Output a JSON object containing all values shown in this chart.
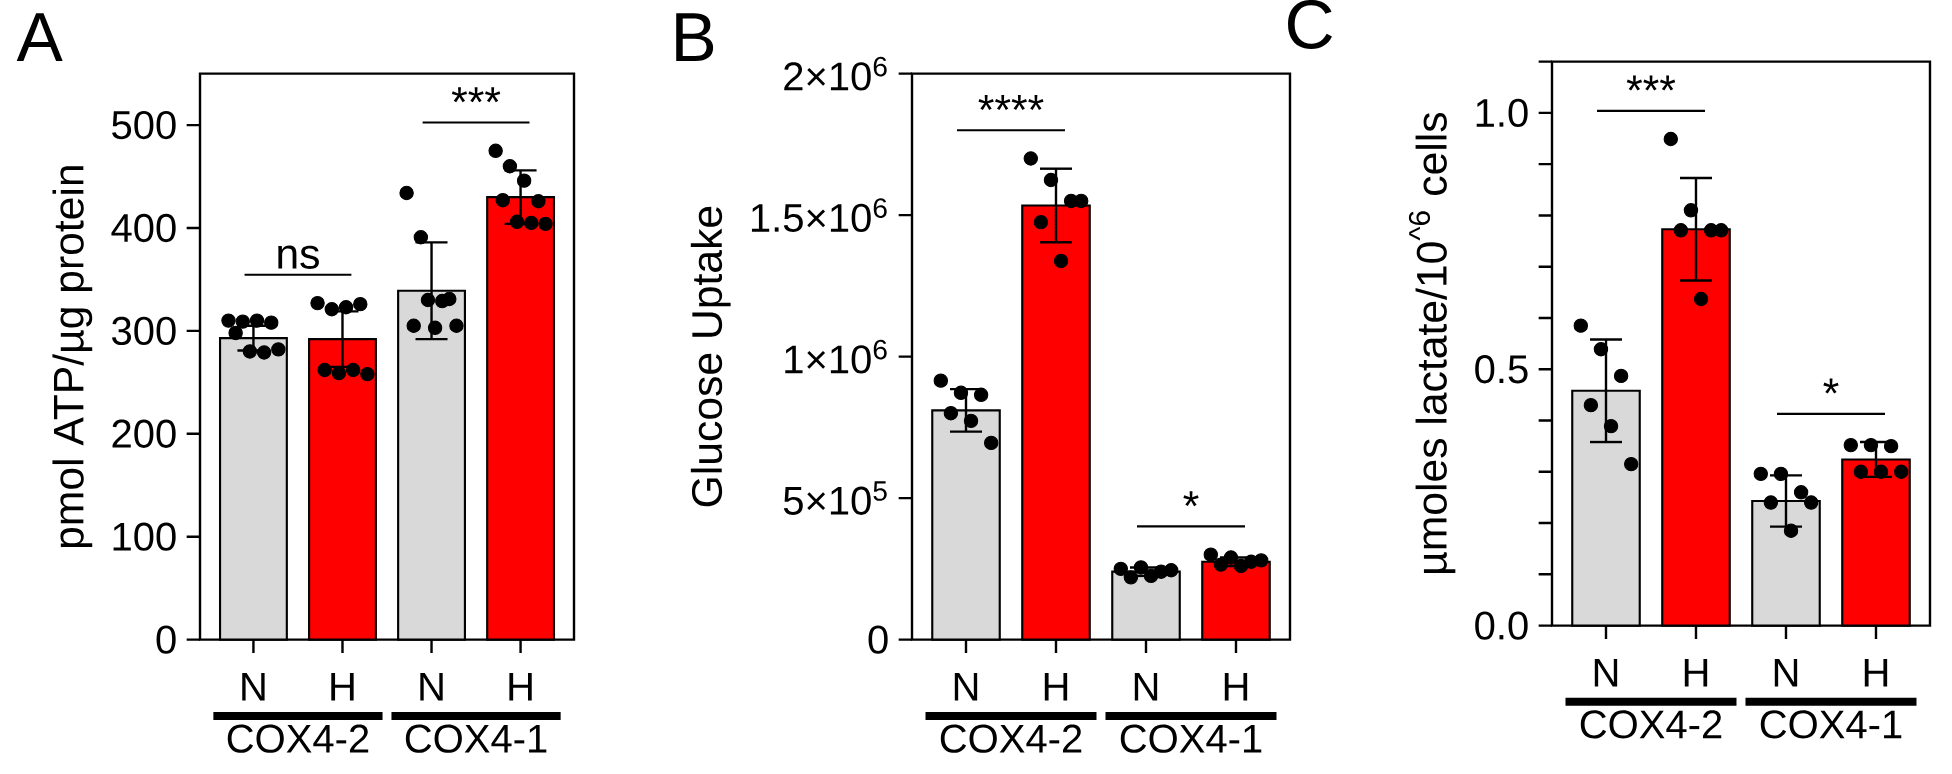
{
  "chart_data": [
    {
      "type": "bar",
      "title": "A",
      "ylabel": "pmol ATP/µg protein",
      "categories": [
        "N",
        "H",
        "N",
        "H"
      ],
      "ylim": [
        0,
        550
      ],
      "yticks": [
        0,
        100,
        200,
        300,
        400,
        500
      ],
      "series": [
        {
          "colors": [
            "#d9d9d9",
            "#ff0000",
            "#d9d9d9",
            "#ff0000"
          ],
          "values": [
            293,
            292,
            339,
            430
          ],
          "errors": [
            12,
            27,
            47,
            26
          ]
        },
        {
          "type": "scatter",
          "color": "#000000",
          "marker": "circle",
          "values": [
            310,
            327,
            434,
            475
          ]
        },
        {
          "type": "scatter",
          "color": "#000000",
          "marker": "circle",
          "values": [
            298,
            262,
            305,
            427
          ]
        },
        {
          "type": "scatter",
          "color": "#000000",
          "marker": "circle",
          "values": [
            309,
            321,
            391,
            460
          ]
        },
        {
          "type": "scatter",
          "color": "#000000",
          "marker": "circle",
          "values": [
            280,
            259,
            330,
            406
          ]
        },
        {
          "type": "scatter",
          "color": "#000000",
          "marker": "circle",
          "values": [
            310,
            323,
            303,
            446
          ]
        },
        {
          "type": "scatter",
          "color": "#000000",
          "marker": "circle",
          "values": [
            279,
            262,
            329,
            405
          ]
        },
        {
          "type": "scatter",
          "color": "#000000",
          "marker": "circle",
          "values": [
            308,
            326,
            331,
            426
          ]
        },
        {
          "type": "scatter",
          "color": "#000000",
          "marker": "circle",
          "values": [
            282,
            258,
            305,
            404
          ]
        }
      ],
      "annotations": [
        "ns",
        "***",
        "COX4-2",
        "COX4-1"
      ]
    },
    {
      "type": "bar",
      "title": "B",
      "ylabel": "Glucose Uptake",
      "categories": [
        "N",
        "H",
        "N",
        "H"
      ],
      "ylim": [
        0,
        2000000
      ],
      "yticks": [
        0,
        {
          "value": 500000,
          "label": "5×10$^{5}$"
        },
        {
          "value": 1000000,
          "label": "1×10$^{6}$"
        },
        {
          "value": 1500000,
          "label": "1.5×10$^{6}$"
        },
        {
          "value": 2000000,
          "label": "2×10$^{6}$"
        }
      ],
      "series": [
        {
          "colors": [
            "#d9d9d9",
            "#ff0000",
            "#d9d9d9",
            "#ff0000"
          ],
          "values": [
            810000,
            1534000,
            240000,
            275000
          ],
          "errors": [
            75000,
            130000,
            15000,
            15000
          ]
        },
        {
          "type": "scatter",
          "color": "#000000",
          "marker": "circle",
          "values": [
            915000,
            1700000,
            250000,
            300000
          ]
        },
        {
          "type": "scatter",
          "color": "#000000",
          "marker": "circle",
          "values": [
            800000,
            1475000,
            220000,
            265000
          ]
        },
        {
          "type": "scatter",
          "color": "#000000",
          "marker": "circle",
          "values": [
            872000,
            1624000,
            255000,
            290000
          ]
        },
        {
          "type": "scatter",
          "color": "#000000",
          "marker": "circle",
          "values": [
            773000,
            1338000,
            225000,
            260000
          ]
        },
        {
          "type": "scatter",
          "color": "#000000",
          "marker": "circle",
          "values": [
            865000,
            1550000,
            240000,
            275000
          ]
        },
        {
          "type": "scatter",
          "color": "#000000",
          "marker": "circle",
          "values": [
            695000,
            1550000,
            245000,
            280000
          ]
        }
      ],
      "annotations": [
        "****",
        "*",
        "COX4-2",
        "COX4-1"
      ]
    },
    {
      "type": "bar",
      "title": "C",
      "ylabel": "µmoles lactate/10$^{^6}$ cells",
      "categories": [
        "N",
        "H",
        "N",
        "H"
      ],
      "ylim": [
        0,
        1.1
      ],
      "yticks": [
        {
          "value": 0,
          "label": "0.0"
        },
        {
          "value": 0.1,
          "label": null
        },
        {
          "value": 0.2,
          "label": null
        },
        {
          "value": 0.3,
          "label": null
        },
        {
          "value": 0.4,
          "label": null
        },
        {
          "value": 0.5,
          "label": "0.5"
        },
        {
          "value": 0.6,
          "label": null
        },
        {
          "value": 0.7,
          "label": null
        },
        {
          "value": 0.8,
          "label": null
        },
        {
          "value": 0.9,
          "label": null
        },
        {
          "value": 1.0,
          "label": "1.0"
        },
        {
          "value": 1.1,
          "label": null
        }
      ],
      "series": [
        {
          "colors": [
            "#d9d9d9",
            "#ff0000",
            "#d9d9d9",
            "#ff0000"
          ],
          "values": [
            0.458,
            0.773,
            0.243,
            0.324
          ],
          "errors": [
            0.1,
            0.1,
            0.05,
            0.034
          ]
        },
        {
          "type": "scatter",
          "color": "#000000",
          "marker": "circle",
          "values": [
            0.585,
            0.949,
            0.296,
            0.352
          ]
        },
        {
          "type": "scatter",
          "color": "#000000",
          "marker": "circle",
          "values": [
            0.43,
            0.771,
            0.24,
            0.3
          ]
        },
        {
          "type": "scatter",
          "color": "#000000",
          "marker": "circle",
          "values": [
            0.539,
            0.81,
            0.296,
            0.352
          ]
        },
        {
          "type": "scatter",
          "color": "#000000",
          "marker": "circle",
          "values": [
            0.389,
            0.637,
            0.185,
            0.3
          ]
        },
        {
          "type": "scatter",
          "color": "#000000",
          "marker": "circle",
          "values": [
            0.487,
            0.771,
            0.26,
            0.35
          ]
        },
        {
          "type": "scatter",
          "color": "#000000",
          "marker": "circle",
          "values": [
            0.315,
            0.771,
            0.24,
            0.3
          ]
        }
      ],
      "annotations": [
        "***",
        "*",
        "COX4-2",
        "COX4-1"
      ]
    }
  ]
}
